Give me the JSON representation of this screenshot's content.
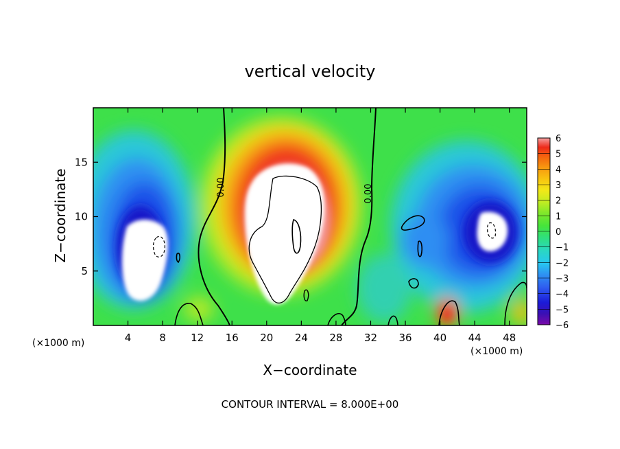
{
  "chart_data": {
    "type": "heatmap",
    "title": "vertical velocity",
    "xlabel": "X−coordinate",
    "ylabel": "Z−coordinate",
    "x_unit_label": "(×1000 m)",
    "x_unit_label_right": "(×1000 m)",
    "footer": "CONTOUR INTERVAL = 8.000E+00",
    "xlim": [
      0,
      50
    ],
    "ylim": [
      0,
      20
    ],
    "x_ticks": [
      4,
      8,
      12,
      16,
      20,
      24,
      28,
      32,
      36,
      40,
      44,
      48
    ],
    "y_ticks": [
      5,
      10,
      15
    ],
    "zero_contour_labels": [
      "0.00",
      "0.00"
    ],
    "colorbar": {
      "min": -6,
      "max": 6,
      "tick_labels": [
        "6",
        "5",
        "4",
        "3",
        "2",
        "1",
        "0",
        "−1",
        "−2",
        "−3",
        "−4",
        "−5",
        "−6"
      ],
      "colors": [
        "#7a0aa8",
        "#3a10b4",
        "#1b1bd8",
        "#2f5df0",
        "#2e93f2",
        "#27c8f0",
        "#2ad8c0",
        "#30e07a",
        "#46e53a",
        "#82e82a",
        "#c4ec22",
        "#f2e818",
        "#f8c410",
        "#f89a10",
        "#f4640e",
        "#ee2a1a",
        "#f06a6a",
        "#f5a0a0"
      ]
    },
    "features": [
      {
        "name": "updraft-core",
        "x": 22.5,
        "z": 9.5,
        "w": 7.5
      },
      {
        "name": "left-downdraft",
        "x": 6.5,
        "z": 7.5,
        "w": -7.5
      },
      {
        "name": "right-downdraft",
        "x": 46,
        "z": 9,
        "w": -6.5
      }
    ]
  }
}
